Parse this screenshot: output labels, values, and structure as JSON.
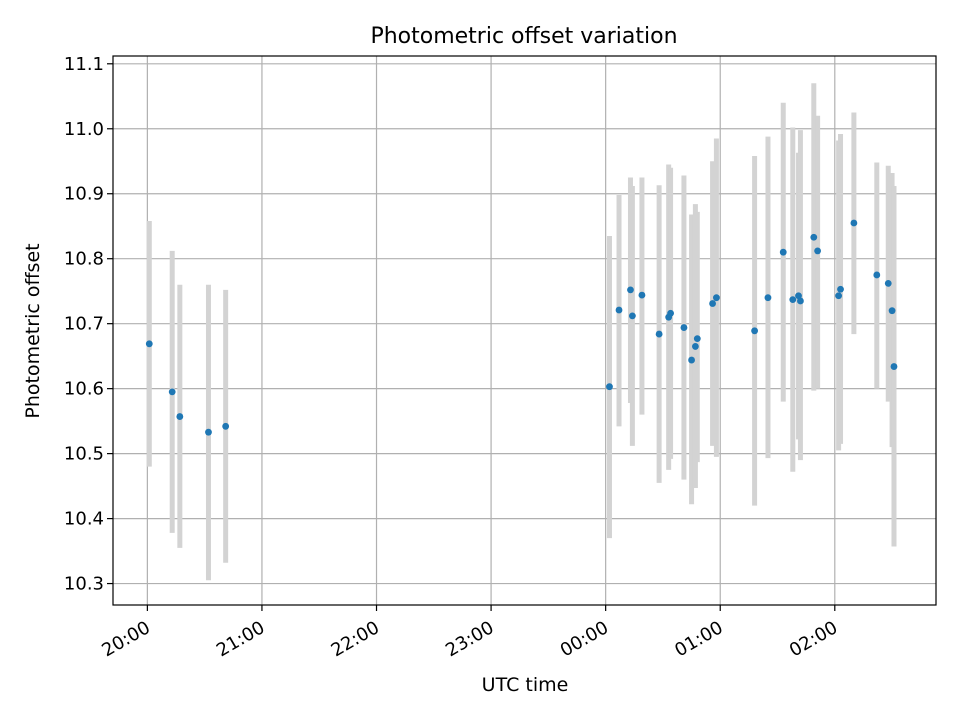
{
  "chart_data": {
    "type": "scatter",
    "title": "Photometric offset variation",
    "xlabel": "UTC time",
    "ylabel": "Photometric offset",
    "x_unit": "UTC time of day (HH:MM), night spanning midnight",
    "xlim": [
      "19:42",
      "02:53"
    ],
    "ylim": [
      10.267,
      11.112
    ],
    "grid": true,
    "x_ticks": [
      "20:00",
      "21:00",
      "22:00",
      "23:00",
      "00:00",
      "01:00",
      "02:00"
    ],
    "y_ticks": [
      "10.3",
      "10.4",
      "10.5",
      "10.6",
      "10.7",
      "10.8",
      "10.9",
      "11.0",
      "11.1"
    ],
    "marker_color": "#1f77b4",
    "errorbar_color": "#d3d3d3",
    "points": [
      {
        "x": "20:01",
        "y": 10.669,
        "ylow": 10.48,
        "yhigh": 10.858
      },
      {
        "x": "20:13",
        "y": 10.595,
        "ylow": 10.378,
        "yhigh": 10.812
      },
      {
        "x": "20:17",
        "y": 10.557,
        "ylow": 10.355,
        "yhigh": 10.76
      },
      {
        "x": "20:32",
        "y": 10.533,
        "ylow": 10.305,
        "yhigh": 10.76
      },
      {
        "x": "20:41",
        "y": 10.542,
        "ylow": 10.332,
        "yhigh": 10.752
      },
      {
        "x": "00:02",
        "y": 10.603,
        "ylow": 10.37,
        "yhigh": 10.835
      },
      {
        "x": "00:07",
        "y": 10.721,
        "ylow": 10.542,
        "yhigh": 10.898
      },
      {
        "x": "00:13",
        "y": 10.752,
        "ylow": 10.578,
        "yhigh": 10.925
      },
      {
        "x": "00:14",
        "y": 10.712,
        "ylow": 10.512,
        "yhigh": 10.912
      },
      {
        "x": "00:19",
        "y": 10.744,
        "ylow": 10.56,
        "yhigh": 10.925
      },
      {
        "x": "00:28",
        "y": 10.684,
        "ylow": 10.455,
        "yhigh": 10.913
      },
      {
        "x": "00:33",
        "y": 10.71,
        "ylow": 10.475,
        "yhigh": 10.945
      },
      {
        "x": "00:34",
        "y": 10.716,
        "ylow": 10.492,
        "yhigh": 10.94
      },
      {
        "x": "00:41",
        "y": 10.694,
        "ylow": 10.46,
        "yhigh": 10.928
      },
      {
        "x": "00:45",
        "y": 10.644,
        "ylow": 10.422,
        "yhigh": 10.868
      },
      {
        "x": "00:47",
        "y": 10.665,
        "ylow": 10.447,
        "yhigh": 10.884
      },
      {
        "x": "00:48",
        "y": 10.677,
        "ylow": 10.487,
        "yhigh": 10.872
      },
      {
        "x": "00:56",
        "y": 10.731,
        "ylow": 10.512,
        "yhigh": 10.95
      },
      {
        "x": "00:58",
        "y": 10.74,
        "ylow": 10.495,
        "yhigh": 10.985
      },
      {
        "x": "01:18",
        "y": 10.689,
        "ylow": 10.42,
        "yhigh": 10.958
      },
      {
        "x": "01:25",
        "y": 10.74,
        "ylow": 10.493,
        "yhigh": 10.988
      },
      {
        "x": "01:33",
        "y": 10.81,
        "ylow": 10.58,
        "yhigh": 11.04
      },
      {
        "x": "01:38",
        "y": 10.737,
        "ylow": 10.472,
        "yhigh": 11.002
      },
      {
        "x": "01:41",
        "y": 10.743,
        "ylow": 10.522,
        "yhigh": 10.963
      },
      {
        "x": "01:42",
        "y": 10.735,
        "ylow": 10.49,
        "yhigh": 10.998
      },
      {
        "x": "01:49",
        "y": 10.833,
        "ylow": 10.597,
        "yhigh": 11.07
      },
      {
        "x": "01:51",
        "y": 10.812,
        "ylow": 10.6,
        "yhigh": 11.02
      },
      {
        "x": "02:02",
        "y": 10.743,
        "ylow": 10.505,
        "yhigh": 10.982
      },
      {
        "x": "02:03",
        "y": 10.753,
        "ylow": 10.515,
        "yhigh": 10.992
      },
      {
        "x": "02:10",
        "y": 10.855,
        "ylow": 10.684,
        "yhigh": 11.025
      },
      {
        "x": "02:22",
        "y": 10.775,
        "ylow": 10.6,
        "yhigh": 10.948
      },
      {
        "x": "02:28",
        "y": 10.762,
        "ylow": 10.58,
        "yhigh": 10.943
      },
      {
        "x": "02:30",
        "y": 10.72,
        "ylow": 10.51,
        "yhigh": 10.932
      },
      {
        "x": "02:31",
        "y": 10.634,
        "ylow": 10.357,
        "yhigh": 10.912
      }
    ]
  }
}
